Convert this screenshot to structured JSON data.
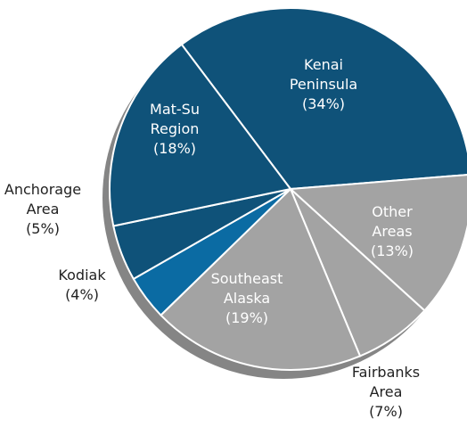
{
  "chart_data": {
    "type": "pie",
    "categories": [
      "Kenai Peninsula",
      "Other Areas",
      "Fairbanks Area",
      "Southeast Alaska",
      "Kodiak",
      "Anchorage Area",
      "Mat-Su Region"
    ],
    "values": [
      34,
      13,
      7,
      19,
      4,
      5,
      18
    ],
    "value_labels": [
      "(34%)",
      "(13%)",
      "(7%)",
      "(19%)",
      "(4%)",
      "(5%)",
      "(18%)"
    ],
    "colors": [
      "#0f5279",
      "#a3a3a3",
      "#a3a3a3",
      "#a3a3a3",
      "#0b6ba3",
      "#0f5279",
      "#0f5279"
    ]
  }
}
